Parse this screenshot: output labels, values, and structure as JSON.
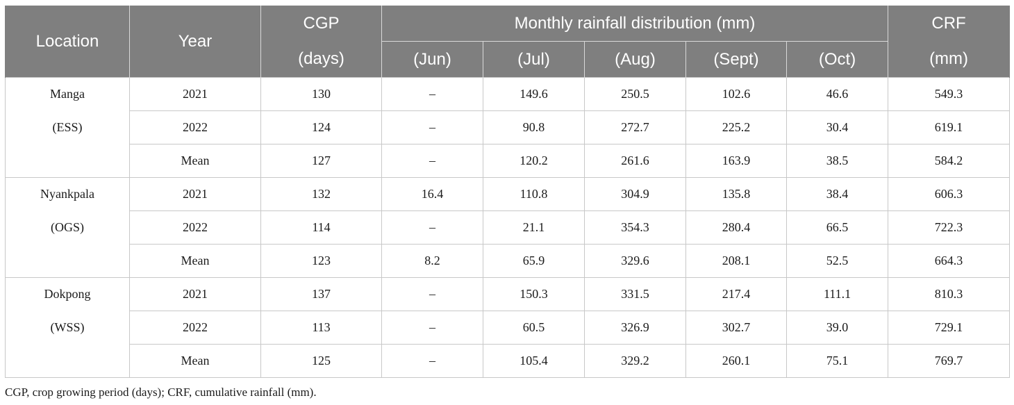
{
  "table": {
    "header": {
      "location": "Location",
      "year": "Year",
      "cgp_top": "CGP",
      "cgp_unit": "(days)",
      "monthly_title": "Monthly rainfall distribution (mm)",
      "months": [
        "(Jun)",
        "(Jul)",
        "(Aug)",
        "(Sept)",
        "(Oct)"
      ],
      "crf_top": "CRF",
      "crf_unit": "(mm)"
    },
    "rows": [
      {
        "loc": "Manga",
        "year": "2021",
        "cgp": "130",
        "jun": "–",
        "jul": "149.6",
        "aug": "250.5",
        "sep": "102.6",
        "oct": "46.6",
        "crf": "549.3"
      },
      {
        "loc": "(ESS)",
        "year": "2022",
        "cgp": "124",
        "jun": "–",
        "jul": "90.8",
        "aug": "272.7",
        "sep": "225.2",
        "oct": "30.4",
        "crf": "619.1"
      },
      {
        "loc": "",
        "year": "Mean",
        "cgp": "127",
        "jun": "–",
        "jul": "120.2",
        "aug": "261.6",
        "sep": "163.9",
        "oct": "38.5",
        "crf": "584.2"
      },
      {
        "loc": "Nyankpala",
        "year": "2021",
        "cgp": "132",
        "jun": "16.4",
        "jul": "110.8",
        "aug": "304.9",
        "sep": "135.8",
        "oct": "38.4",
        "crf": "606.3"
      },
      {
        "loc": "(OGS)",
        "year": "2022",
        "cgp": "114",
        "jun": "–",
        "jul": "21.1",
        "aug": "354.3",
        "sep": "280.4",
        "oct": "66.5",
        "crf": "722.3"
      },
      {
        "loc": "",
        "year": "Mean",
        "cgp": "123",
        "jun": "8.2",
        "jul": "65.9",
        "aug": "329.6",
        "sep": "208.1",
        "oct": "52.5",
        "crf": "664.3"
      },
      {
        "loc": "Dokpong",
        "year": "2021",
        "cgp": "137",
        "jun": "–",
        "jul": "150.3",
        "aug": "331.5",
        "sep": "217.4",
        "oct": "111.1",
        "crf": "810.3"
      },
      {
        "loc": "(WSS)",
        "year": "2022",
        "cgp": "113",
        "jun": "–",
        "jul": "60.5",
        "aug": "326.9",
        "sep": "302.7",
        "oct": "39.0",
        "crf": "729.1"
      },
      {
        "loc": "",
        "year": "Mean",
        "cgp": "125",
        "jun": "–",
        "jul": "105.4",
        "aug": "329.2",
        "sep": "260.1",
        "oct": "75.1",
        "crf": "769.7"
      }
    ]
  },
  "footnote": "CGP, crop growing period (days); CRF, cumulative rainfall (mm)."
}
